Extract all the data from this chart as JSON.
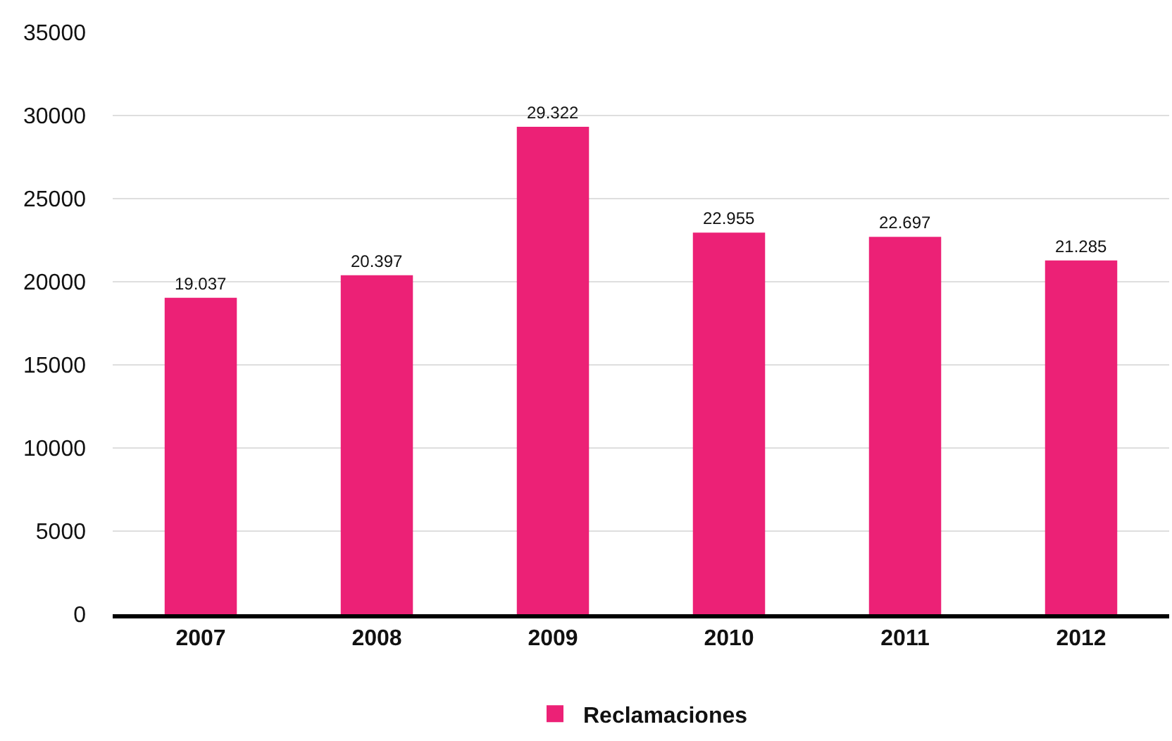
{
  "chart_data": {
    "type": "bar",
    "categories": [
      "2007",
      "2008",
      "2009",
      "2010",
      "2011",
      "2012"
    ],
    "series": [
      {
        "name": "Reclamaciones",
        "color": "#ec2176",
        "values": [
          19037,
          20397,
          29322,
          22955,
          22697,
          21285
        ],
        "value_labels": [
          "19.037",
          "20.397",
          "29.322",
          "22.955",
          "22.697",
          "21.285"
        ]
      }
    ],
    "ylim": [
      0,
      35000
    ],
    "yticks": [
      0,
      5000,
      10000,
      15000,
      20000,
      25000,
      30000,
      35000
    ],
    "grid": "y",
    "legend": "bottom"
  }
}
